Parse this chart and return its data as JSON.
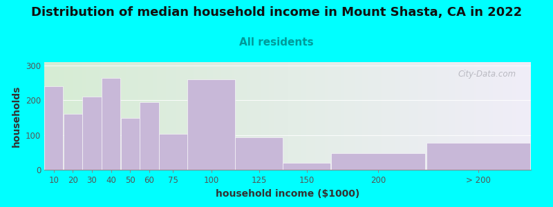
{
  "title": "Distribution of median household income in Mount Shasta, CA in 2022",
  "subtitle": "All residents",
  "xlabel": "household income ($1000)",
  "ylabel": "households",
  "background_color": "#00FFFF",
  "bar_color": "#c8b8d8",
  "categories": [
    "10",
    "20",
    "30",
    "40",
    "50",
    "60",
    "75",
    "100",
    "125",
    "150",
    "200",
    "> 200"
  ],
  "values": [
    240,
    160,
    210,
    265,
    150,
    195,
    103,
    260,
    93,
    20,
    47,
    77
  ],
  "bar_lefts": [
    0,
    10,
    20,
    30,
    40,
    50,
    60,
    75,
    100,
    125,
    150,
    200
  ],
  "bar_widths": [
    10,
    10,
    10,
    10,
    10,
    10,
    15,
    25,
    25,
    25,
    50,
    55
  ],
  "xlim": [
    0,
    255
  ],
  "ylim": [
    0,
    310
  ],
  "yticks": [
    0,
    100,
    200,
    300
  ],
  "title_fontsize": 13,
  "subtitle_fontsize": 11,
  "axis_label_fontsize": 10,
  "tick_fontsize": 8.5,
  "watermark_text": "City-Data.com",
  "gradient_left": "#d6ecd4",
  "gradient_right": "#f0eef8"
}
